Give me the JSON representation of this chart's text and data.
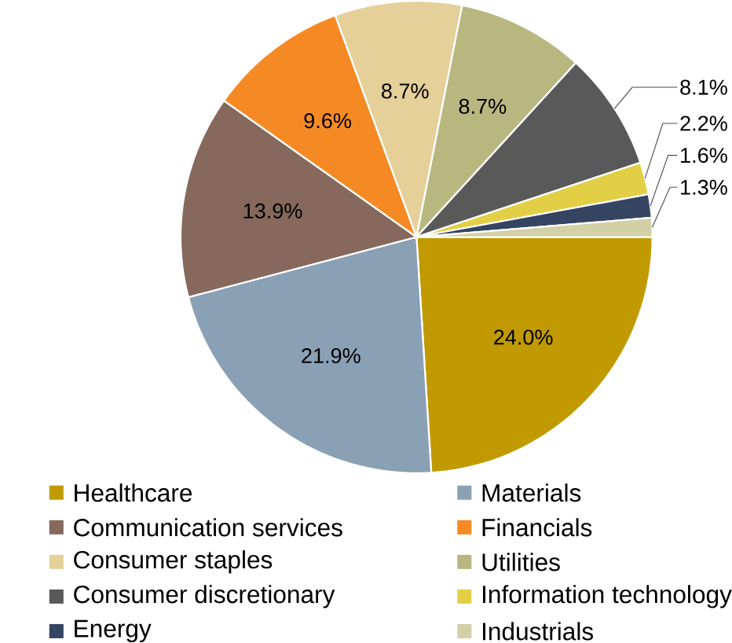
{
  "chart_data": {
    "type": "pie",
    "legend": "bottom",
    "data_labels": true,
    "categories": [
      "Healthcare",
      "Materials",
      "Communication services",
      "Financials",
      "Consumer staples",
      "Utilities",
      "Consumer discretionary",
      "Information technology",
      "Energy",
      "Industrials"
    ],
    "values": [
      24.0,
      21.9,
      13.9,
      9.6,
      8.7,
      8.7,
      8.1,
      2.2,
      1.6,
      1.3
    ],
    "value_labels": [
      "24.0%",
      "21.9%",
      "13.9%",
      "9.6%",
      "8.7%",
      "8.7%",
      "8.1%",
      "2.2%",
      "1.6%",
      "1.3%"
    ],
    "colors": [
      "#c09a00",
      "#8aa0b5",
      "#86695c",
      "#f58a25",
      "#e5d09a",
      "#b8b780",
      "#595959",
      "#e2cf45",
      "#354461",
      "#d3cfa6"
    ]
  }
}
